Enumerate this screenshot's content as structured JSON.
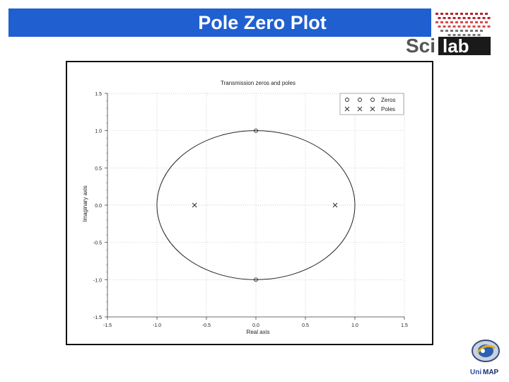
{
  "slide": {
    "title": "Pole Zero Plot",
    "accent_color": "#1f5fd0"
  },
  "logos": {
    "scilab_text_a": "Sci",
    "scilab_text_b": "lab",
    "unimap_text_a": "Uni",
    "unimap_text_b": "MAP",
    "unimap_icon": "unimap-emblem-icon"
  },
  "chart_data": {
    "type": "scatter",
    "title": "Transmission zeros and poles",
    "xlabel": "Real axis",
    "ylabel": "Imaginary axis",
    "xlim": [
      -1.5,
      1.5
    ],
    "ylim": [
      -1.5,
      1.5
    ],
    "xticks": [
      "-1.5",
      "-1.0",
      "-0.5",
      "0.0",
      "0.5",
      "1.0",
      "1.5"
    ],
    "yticks": [
      "1.5",
      "1.0",
      "0.5",
      "0.0",
      "-0.5",
      "-1.0",
      "-1.5"
    ],
    "grid": true,
    "legend_position": "top-right",
    "unit_circle": true,
    "series": [
      {
        "name": "Zeros",
        "marker": "circle",
        "points": [
          [
            0,
            1.0
          ],
          [
            0,
            -1.0
          ]
        ]
      },
      {
        "name": "Poles",
        "marker": "cross",
        "points": [
          [
            -0.62,
            0.0
          ],
          [
            0.8,
            0.0
          ]
        ]
      }
    ]
  }
}
